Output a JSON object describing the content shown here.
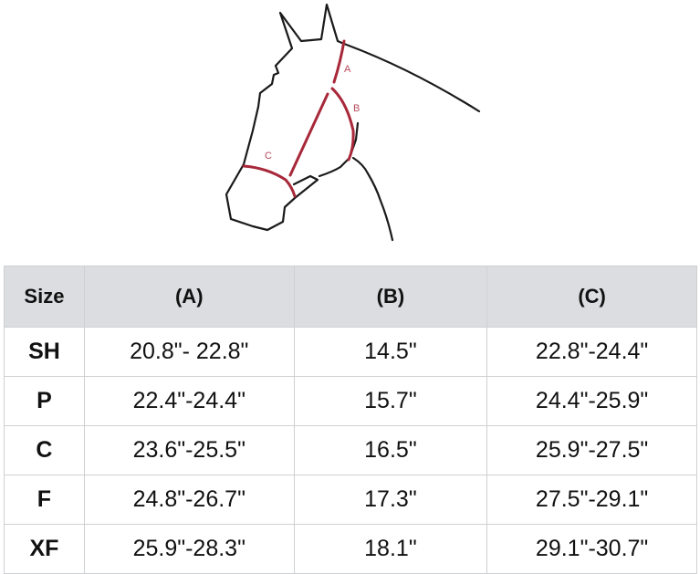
{
  "diagram": {
    "labels": {
      "a": "A",
      "b": "B",
      "c": "C"
    },
    "colors": {
      "outline": "#1a1a1a",
      "measure": "#a8283a",
      "label": "#b5495b"
    }
  },
  "table": {
    "headers": [
      "Size",
      "(A)",
      "(B)",
      "(C)"
    ],
    "rows": [
      [
        "SH",
        "20.8\"- 22.8\"",
        "14.5\"",
        "22.8\"-24.4\""
      ],
      [
        "P",
        "22.4\"-24.4\"",
        "15.7\"",
        "24.4\"-25.9\""
      ],
      [
        "C",
        "23.6\"-25.5\"",
        "16.5\"",
        "25.9\"-27.5\""
      ],
      [
        "F",
        "24.8\"-26.7\"",
        "17.3\"",
        "27.5\"-29.1\""
      ],
      [
        "XF",
        "25.9\"-28.3\"",
        "18.1\"",
        "29.1\"-30.7\""
      ]
    ],
    "header_bg": "#dcdde0"
  }
}
